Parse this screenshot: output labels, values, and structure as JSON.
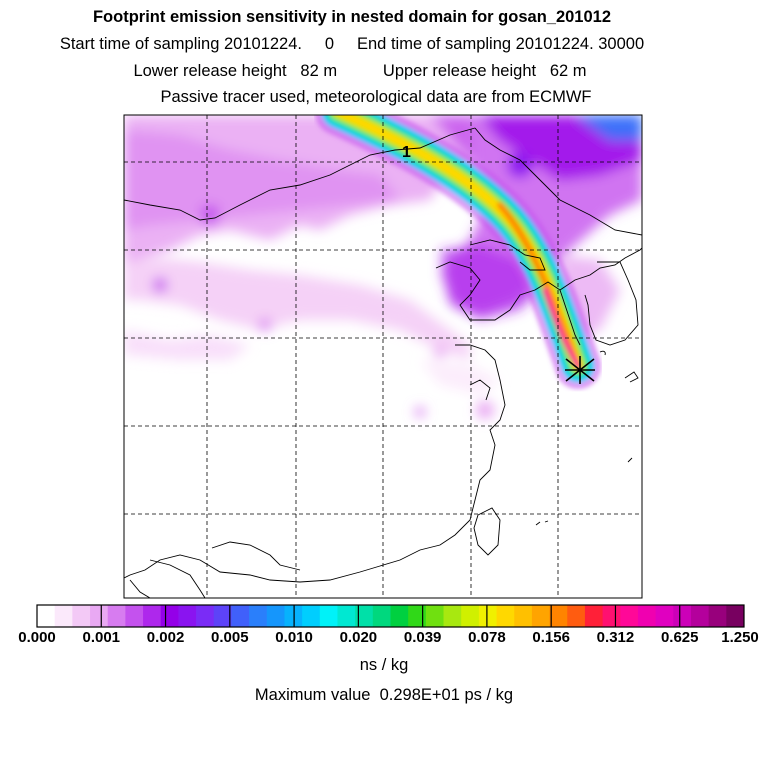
{
  "title": "Footprint emission sensitivity in nested domain for gosan_201012",
  "sampling_line": "Start time of sampling 20101224.     0     End time of sampling 20101224. 30000",
  "release_line": "Lower release height   82 m          Upper release height   62 m",
  "tracer_line": "Passive tracer used, meteorological data are from ECMWF",
  "plume_label": "1",
  "colorbar": {
    "labels": [
      "0.000",
      "0.001",
      "0.002",
      "0.005",
      "0.010",
      "0.020",
      "0.039",
      "0.078",
      "0.156",
      "0.312",
      "0.625",
      "1.250"
    ],
    "colors": [
      "#ffffff",
      "#fbe9fb",
      "#f3c9f6",
      "#e9a9f3",
      "#d77cf0",
      "#c452ee",
      "#ae28ec",
      "#9400e8",
      "#8a14f0",
      "#7a2cf6",
      "#5d43f8",
      "#4060fa",
      "#2a7ffb",
      "#1596fc",
      "#07b2fd",
      "#00cefe",
      "#00f2f8",
      "#00e8d2",
      "#00e0a8",
      "#00d87e",
      "#00d040",
      "#30d818",
      "#70e010",
      "#a8e810",
      "#d0f000",
      "#f0f000",
      "#ffd800",
      "#ffc000",
      "#ffa400",
      "#ff8400",
      "#ff5c10",
      "#ff2038",
      "#ff1070",
      "#ff0898",
      "#f000b0",
      "#e000c0",
      "#cc00b8",
      "#b4009c",
      "#98007c",
      "#780060"
    ]
  },
  "units": "ns / kg",
  "max_value_line": "Maximum value  0.298E+01 ps / kg"
}
